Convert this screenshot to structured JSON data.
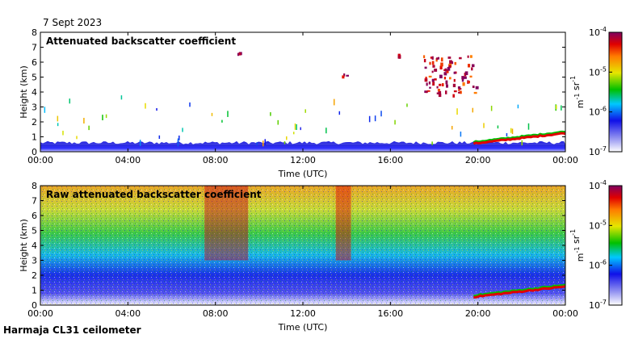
{
  "page": {
    "date": "7 Sept 2023",
    "footer": "Harmaja CL31 ceilometer"
  },
  "chart_data": [
    {
      "type": "heatmap",
      "title": "Attenuated backscatter coefficient",
      "xlabel": "Time (UTC)",
      "ylabel": "Height (km)",
      "xticks": [
        "00:00",
        "04:00",
        "08:00",
        "12:00",
        "16:00",
        "20:00",
        "00:00"
      ],
      "xlim_hours": [
        0,
        24
      ],
      "yticks": [
        "0",
        "1",
        "2",
        "3",
        "4",
        "5",
        "6",
        "7",
        "8"
      ],
      "ylim_km": [
        0,
        8
      ],
      "colorbar": {
        "scale": "log",
        "ticks": [
          "10^-7",
          "10^-6",
          "10^-5",
          "10^-4"
        ],
        "range": [
          1e-07,
          0.0001
        ],
        "label": "m-1 sr-1"
      },
      "features": [
        {
          "name": "surface-aerosol-layer",
          "time_hours": [
            0,
            24
          ],
          "height_km": [
            0,
            0.5
          ],
          "value": 2e-07
        },
        {
          "name": "low-cloud-layer",
          "time_hours": [
            19.8,
            24
          ],
          "height_km": [
            0.5,
            1.3
          ],
          "value": 5e-05
        },
        {
          "name": "mid-level-cloud",
          "time_hours": [
            17.5,
            19.9
          ],
          "height_km": [
            3.8,
            6.5
          ],
          "value": 8e-05
        },
        {
          "name": "cloud-fragment",
          "time_hours": [
            13.7,
            14.0
          ],
          "height_km": [
            5.1,
            5.3
          ],
          "value": 0.0001
        },
        {
          "name": "cloud-fragment",
          "time_hours": [
            16.3,
            16.4
          ],
          "height_km": [
            6.4,
            6.6
          ],
          "value": 8e-05
        },
        {
          "name": "cloud-fragment",
          "time_hours": [
            9.0,
            9.1
          ],
          "height_km": [
            6.6,
            6.7
          ],
          "value": 0.0001
        }
      ]
    },
    {
      "type": "heatmap",
      "title": "Raw attenuated backscatter coefficient",
      "xlabel": "Time (UTC)",
      "ylabel": "Height (km)",
      "xticks": [
        "00:00",
        "04:00",
        "08:00",
        "12:00",
        "16:00",
        "20:00",
        "00:00"
      ],
      "xlim_hours": [
        0,
        24
      ],
      "yticks": [
        "0",
        "1",
        "2",
        "3",
        "4",
        "5",
        "6",
        "7",
        "8"
      ],
      "ylim_km": [
        0,
        8
      ],
      "colorbar": {
        "scale": "log",
        "ticks": [
          "10^-7",
          "10^-6",
          "10^-5",
          "10^-4"
        ],
        "range": [
          1e-07,
          0.0001
        ],
        "label": "m-1 sr-1"
      },
      "features": [
        {
          "name": "noise-background",
          "time_hours": [
            0,
            24
          ],
          "height_km": [
            0,
            8
          ],
          "value": "increases with height"
        },
        {
          "name": "enhanced-noise-band",
          "time_hours": [
            7.5,
            9.5
          ],
          "height_km": [
            3,
            8
          ],
          "value": 6e-05
        },
        {
          "name": "enhanced-noise-band",
          "time_hours": [
            13.5,
            14.2
          ],
          "height_km": [
            3,
            8
          ],
          "value": 5e-05
        },
        {
          "name": "low-cloud-layer",
          "time_hours": [
            19.8,
            24
          ],
          "height_km": [
            0.5,
            1.3
          ],
          "value": 5e-05
        }
      ]
    }
  ]
}
